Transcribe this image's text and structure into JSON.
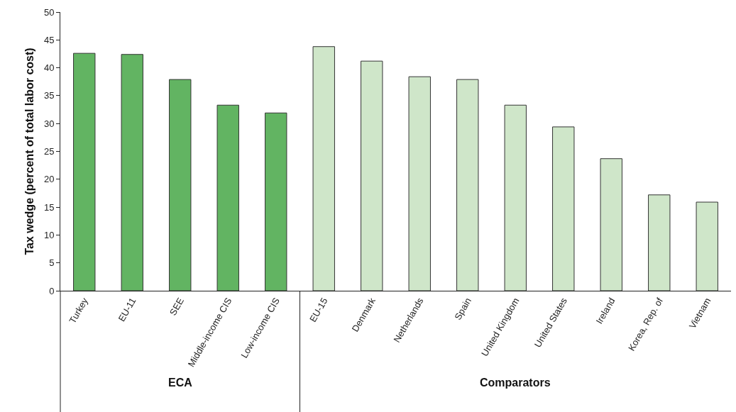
{
  "chart_data": {
    "type": "bar",
    "ylabel": "Tax wedge (percent of total labor cost)",
    "categories": [
      "Turkey",
      "EU-11",
      "SEE",
      "Middle-income CIS",
      "Low-income CIS",
      "EU-15",
      "Denmark",
      "Netherlands",
      "Spain",
      "United Kingdom",
      "United States",
      "Ireland",
      "Korea, Rep. of",
      "Vietnam"
    ],
    "values": [
      42.6,
      42.4,
      37.9,
      33.3,
      31.9,
      43.8,
      41.2,
      38.4,
      37.9,
      33.3,
      29.4,
      23.7,
      17.2,
      15.9
    ],
    "colors": [
      "#62b462",
      "#62b462",
      "#62b462",
      "#62b462",
      "#62b462",
      "#cfe6c9",
      "#cfe6c9",
      "#cfe6c9",
      "#cfe6c9",
      "#cfe6c9",
      "#cfe6c9",
      "#cfe6c9",
      "#cfe6c9",
      "#cfe6c9"
    ],
    "ylim": [
      0,
      50
    ],
    "yticks": [
      0,
      5,
      10,
      15,
      20,
      25,
      30,
      35,
      40,
      45,
      50
    ],
    "grid": false,
    "annotations": [
      "ECA",
      "Comparators"
    ]
  }
}
